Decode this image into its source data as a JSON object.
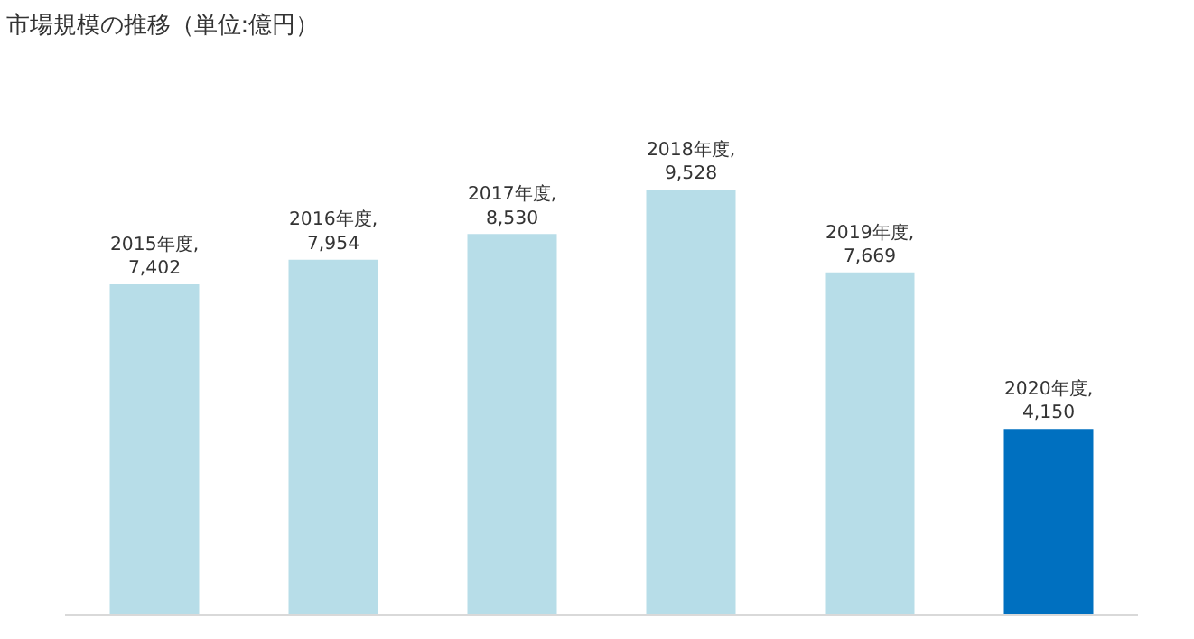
{
  "chart_data": {
    "type": "bar",
    "title": "市場規模の推移（単位:億円）",
    "categories": [
      null,
      null,
      null,
      null,
      null,
      null
    ],
    "values": [
      7402,
      7954,
      8530,
      9528,
      7669,
      4150
    ],
    "value_labels": [
      "2015年度,\n7,402",
      "2016年度,\n7,954",
      "2017年度,\n8,530",
      "2018年度,\n9,528",
      "2019年度,\n7,669",
      "2020年度,\n4,150"
    ],
    "colors": [
      "#b7dde8",
      "#b7dde8",
      "#b7dde8",
      "#b7dde8",
      "#b7dde8",
      "#0070c0"
    ],
    "grid": false,
    "legend": false
  }
}
